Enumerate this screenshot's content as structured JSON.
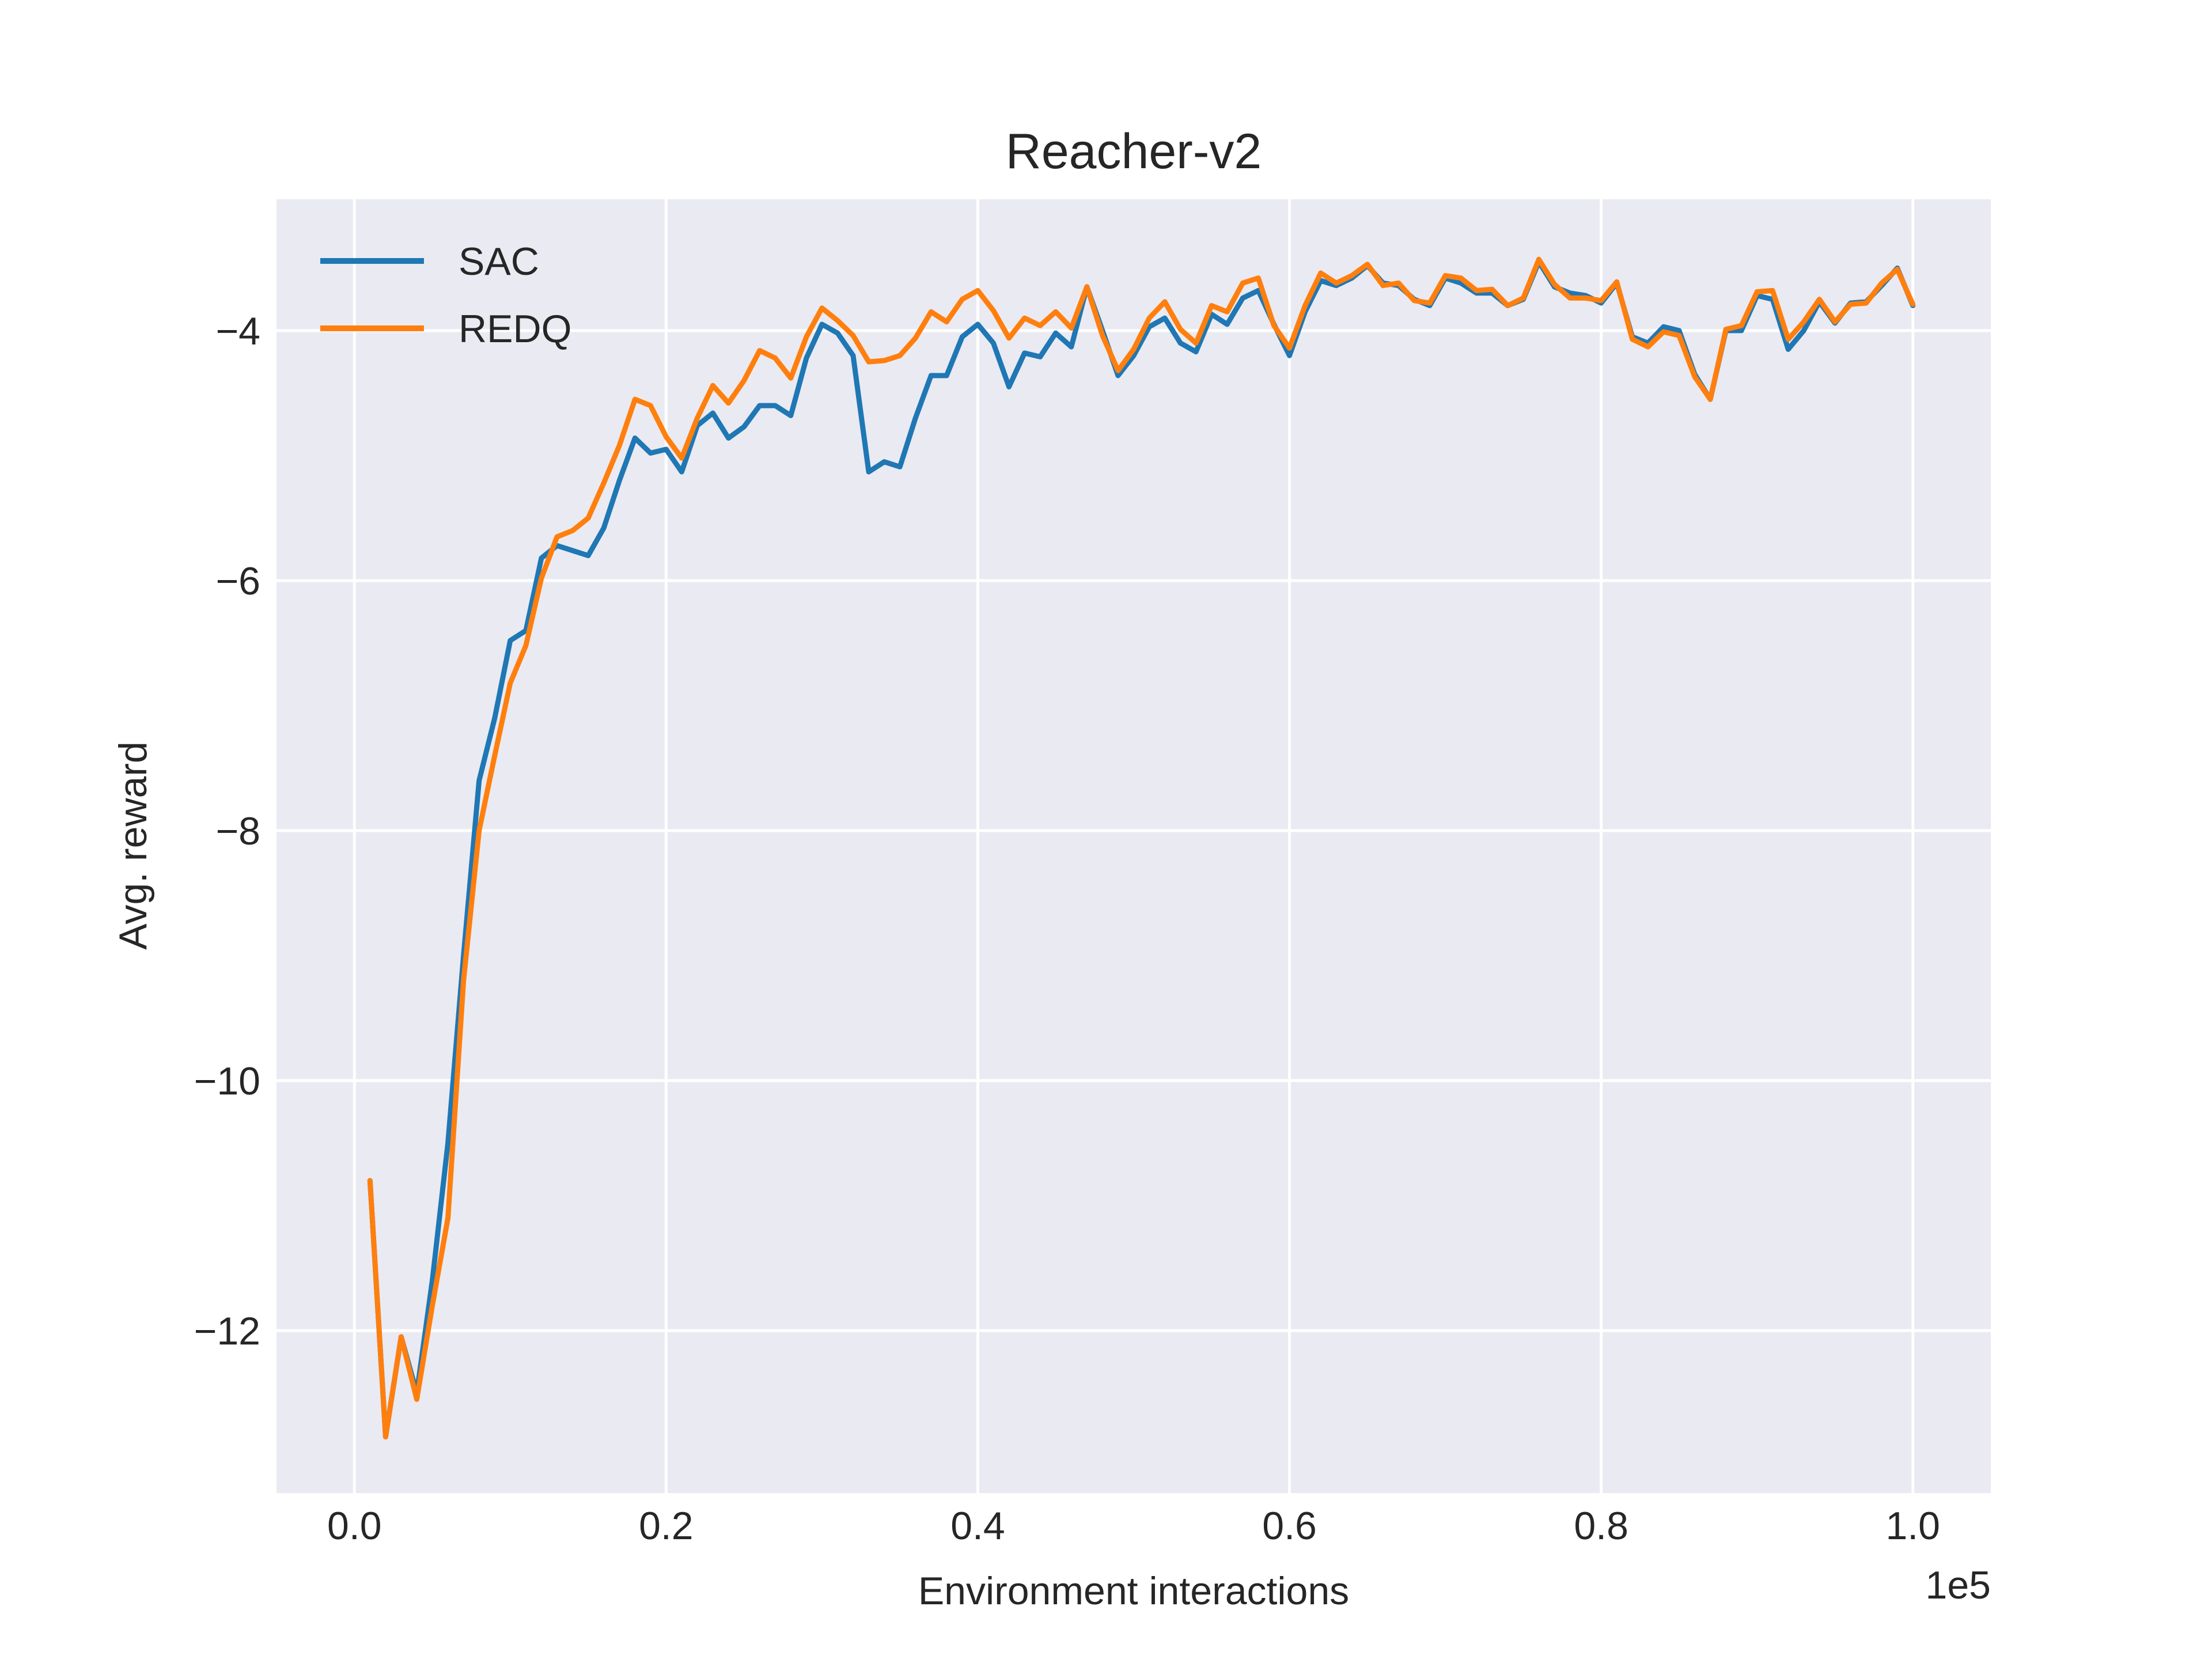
{
  "chart_data": {
    "type": "line",
    "title": "Reacher-v2",
    "xlabel": "Environment interactions",
    "ylabel": "Avg. reward",
    "x_offset_label": "1e5",
    "xlim": [
      -0.05,
      1.05
    ],
    "ylim": [
      -13.3,
      -2.95
    ],
    "x_ticks": [
      0.0,
      0.2,
      0.4,
      0.6,
      0.8,
      1.0
    ],
    "x_tick_labels": [
      "0.0",
      "0.2",
      "0.4",
      "0.6",
      "0.8",
      "1.0"
    ],
    "y_ticks": [
      -12,
      -10,
      -8,
      -6,
      -4
    ],
    "y_tick_labels": [
      "−12",
      "−10",
      "−8",
      "−6",
      "−4"
    ],
    "grid": true,
    "legend_position": "top-left",
    "background": "#eaeaf2",
    "x": [
      0.01,
      0.02,
      0.03,
      0.04,
      0.05,
      0.06,
      0.07,
      0.08,
      0.09,
      0.1,
      0.11,
      0.12,
      0.13,
      0.14,
      0.15,
      0.16,
      0.17,
      0.18,
      0.19,
      0.2,
      0.21,
      0.22,
      0.23,
      0.24,
      0.25,
      0.26,
      0.27,
      0.28,
      0.29,
      0.3,
      0.31,
      0.32,
      0.33,
      0.34,
      0.35,
      0.36,
      0.37,
      0.38,
      0.39,
      0.4,
      0.41,
      0.42,
      0.43,
      0.44,
      0.45,
      0.46,
      0.47,
      0.48,
      0.49,
      0.5,
      0.51,
      0.52,
      0.53,
      0.54,
      0.55,
      0.56,
      0.57,
      0.58,
      0.59,
      0.6,
      0.61,
      0.62,
      0.63,
      0.64,
      0.65,
      0.66,
      0.67,
      0.68,
      0.69,
      0.7,
      0.71,
      0.72,
      0.73,
      0.74,
      0.75,
      0.76,
      0.77,
      0.78,
      0.79,
      0.8,
      0.81,
      0.82,
      0.83,
      0.84,
      0.85,
      0.86,
      0.87,
      0.88,
      0.89,
      0.9,
      0.91,
      0.92,
      0.93,
      0.94,
      0.95,
      0.96,
      0.97,
      0.98,
      0.99,
      1.0
    ],
    "series": [
      {
        "name": "SAC",
        "color": "#1f77b4",
        "values": [
          -10.8,
          -12.85,
          -12.05,
          -12.5,
          -11.6,
          -10.5,
          -9.0,
          -7.6,
          -7.1,
          -6.48,
          -6.4,
          -5.82,
          -5.72,
          -5.76,
          -5.8,
          -5.58,
          -5.2,
          -4.86,
          -4.98,
          -4.95,
          -5.13,
          -4.76,
          -4.66,
          -4.86,
          -4.77,
          -4.6,
          -4.6,
          -4.68,
          -4.22,
          -3.95,
          -4.02,
          -4.2,
          -5.13,
          -5.05,
          -5.09,
          -4.7,
          -4.36,
          -4.36,
          -4.05,
          -3.95,
          -4.1,
          -4.45,
          -4.18,
          -4.21,
          -4.02,
          -4.13,
          -3.65,
          -4.0,
          -4.36,
          -4.2,
          -3.97,
          -3.9,
          -4.1,
          -4.17,
          -3.87,
          -3.95,
          -3.74,
          -3.68,
          -3.95,
          -4.2,
          -3.85,
          -3.6,
          -3.64,
          -3.58,
          -3.48,
          -3.62,
          -3.64,
          -3.75,
          -3.8,
          -3.58,
          -3.62,
          -3.7,
          -3.7,
          -3.8,
          -3.75,
          -3.45,
          -3.65,
          -3.7,
          -3.72,
          -3.78,
          -3.62,
          -4.05,
          -4.1,
          -3.97,
          -4.0,
          -4.35,
          -4.55,
          -4.0,
          -4.0,
          -3.72,
          -3.75,
          -4.15,
          -4.0,
          -3.77,
          -3.94,
          -3.78,
          -3.77,
          -3.64,
          -3.5,
          -3.8
        ]
      },
      {
        "name": "REDQ",
        "color": "#ff7f0e",
        "values": [
          -10.8,
          -12.85,
          -12.05,
          -12.55,
          -11.8,
          -11.1,
          -9.2,
          -8.0,
          -7.4,
          -6.82,
          -6.52,
          -5.98,
          -5.65,
          -5.6,
          -5.5,
          -5.22,
          -4.92,
          -4.55,
          -4.6,
          -4.85,
          -5.02,
          -4.7,
          -4.44,
          -4.58,
          -4.4,
          -4.16,
          -4.22,
          -4.38,
          -4.05,
          -3.82,
          -3.92,
          -4.04,
          -4.25,
          -4.24,
          -4.2,
          -4.06,
          -3.85,
          -3.93,
          -3.75,
          -3.68,
          -3.84,
          -4.06,
          -3.9,
          -3.96,
          -3.85,
          -3.98,
          -3.65,
          -4.04,
          -4.32,
          -4.15,
          -3.9,
          -3.77,
          -3.99,
          -4.1,
          -3.8,
          -3.85,
          -3.62,
          -3.58,
          -3.96,
          -4.14,
          -3.8,
          -3.54,
          -3.62,
          -3.56,
          -3.47,
          -3.64,
          -3.62,
          -3.76,
          -3.78,
          -3.56,
          -3.58,
          -3.68,
          -3.67,
          -3.8,
          -3.74,
          -3.43,
          -3.63,
          -3.74,
          -3.74,
          -3.76,
          -3.61,
          -4.07,
          -4.13,
          -4.01,
          -4.04,
          -4.37,
          -4.55,
          -3.99,
          -3.96,
          -3.69,
          -3.68,
          -4.07,
          -3.93,
          -3.75,
          -3.93,
          -3.79,
          -3.78,
          -3.62,
          -3.51,
          -3.79
        ]
      }
    ]
  }
}
